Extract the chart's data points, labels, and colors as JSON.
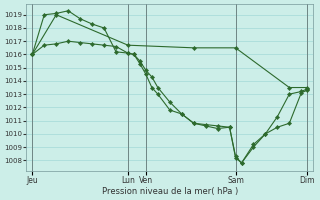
{
  "bg_color": "#cceee8",
  "grid_color": "#aaddda",
  "line_color": "#2d6a2d",
  "xlabel": "Pression niveau de la mer( hPa )",
  "ylim": [
    1007.2,
    1019.8
  ],
  "yticks": [
    1008,
    1009,
    1010,
    1011,
    1012,
    1013,
    1014,
    1015,
    1016,
    1017,
    1018,
    1019
  ],
  "xlim": [
    0,
    24
  ],
  "xtick_positions": [
    0.5,
    8.5,
    10.0,
    17.5,
    23.5
  ],
  "xtick_labels": [
    "Jeu",
    "Lun",
    "Ven",
    "Sam",
    "Dim"
  ],
  "vlines": [
    0.5,
    8.5,
    10.0,
    17.5,
    23.5
  ],
  "line1": {
    "x": [
      0.5,
      1.5,
      2.5,
      3.5,
      4.5,
      5.5,
      6.5,
      7.5,
      8.5,
      9.0,
      9.5,
      10.0,
      10.5,
      11.0,
      12.0,
      13.0,
      14.0,
      15.0,
      16.0,
      17.0,
      17.5,
      18.0,
      19.0,
      20.0,
      21.0,
      22.0,
      23.0,
      23.5
    ],
    "y": [
      1016.0,
      1019.0,
      1019.1,
      1019.3,
      1018.7,
      1018.3,
      1018.0,
      1016.2,
      1016.1,
      1016.0,
      1015.5,
      1014.8,
      1014.3,
      1013.5,
      1012.4,
      1011.5,
      1010.8,
      1010.6,
      1010.4,
      1010.5,
      1008.2,
      1007.8,
      1009.0,
      1010.0,
      1011.3,
      1013.0,
      1013.2,
      1013.4
    ]
  },
  "line2": {
    "x": [
      0.5,
      1.5,
      2.5,
      3.5,
      4.5,
      5.5,
      6.5,
      7.5,
      8.5,
      9.0,
      9.5,
      10.0,
      10.5,
      11.0,
      12.0,
      13.0,
      14.0,
      15.0,
      16.0,
      17.0,
      17.5,
      18.0,
      19.0,
      20.0,
      21.0,
      22.0,
      23.0,
      23.5
    ],
    "y": [
      1016.0,
      1016.7,
      1016.8,
      1017.0,
      1016.9,
      1016.8,
      1016.7,
      1016.6,
      1016.1,
      1016.0,
      1015.3,
      1014.5,
      1013.5,
      1013.0,
      1011.8,
      1011.5,
      1010.8,
      1010.7,
      1010.6,
      1010.5,
      1008.3,
      1007.8,
      1009.2,
      1010.0,
      1010.5,
      1010.8,
      1013.1,
      1013.3
    ]
  },
  "line3": {
    "x": [
      0.5,
      2.5,
      8.5,
      14.0,
      17.5,
      22.0,
      23.5
    ],
    "y": [
      1016.0,
      1019.0,
      1016.7,
      1016.5,
      1016.5,
      1013.5,
      1013.5
    ]
  }
}
